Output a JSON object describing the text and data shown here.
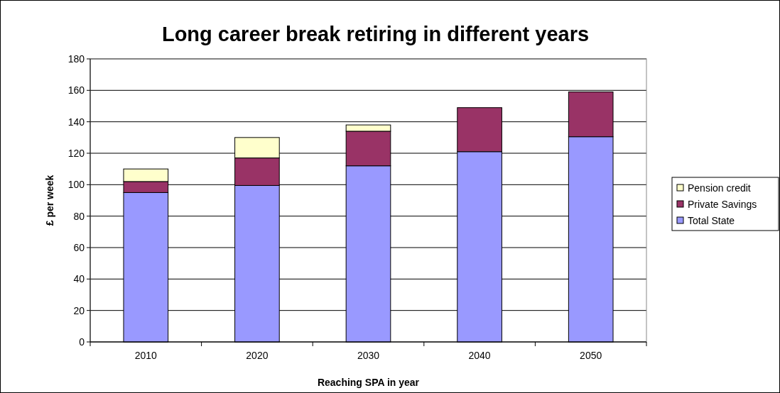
{
  "chart_data": {
    "type": "bar",
    "title": "Long career break retiring in different years",
    "xlabel": "Reaching SPA in year",
    "ylabel": "£ per week",
    "categories": [
      "2010",
      "2020",
      "2030",
      "2040",
      "2050"
    ],
    "stacked": true,
    "series": [
      {
        "name": "Total State",
        "color": "#9999ff",
        "values": [
          95,
          99.5,
          112,
          121,
          130.5
        ]
      },
      {
        "name": "Private Savings",
        "color": "#993366",
        "values": [
          7,
          17.5,
          22,
          28,
          28.5
        ]
      },
      {
        "name": "Pension credit",
        "color": "#ffffcc",
        "values": [
          8,
          13,
          4,
          null,
          null
        ]
      }
    ],
    "ylim": [
      0,
      180
    ],
    "yticks": [
      0,
      20,
      40,
      60,
      80,
      100,
      120,
      140,
      160,
      180
    ],
    "grid": "y",
    "legend": "right"
  }
}
